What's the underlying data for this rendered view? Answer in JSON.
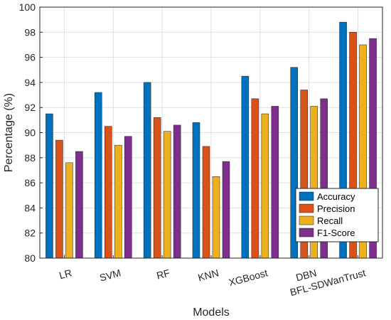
{
  "chart_data": {
    "type": "bar",
    "title": "",
    "xlabel": "Models",
    "ylabel": "Percentage (%)",
    "ylim": [
      80,
      100
    ],
    "yticks": [
      80,
      82,
      84,
      86,
      88,
      90,
      92,
      94,
      96,
      98,
      100
    ],
    "grid": true,
    "legend_position": "bottom-right",
    "categories": [
      "LR",
      "SVM",
      "RF",
      "KNN",
      "XGBoost",
      "DBN",
      "BFL-SDWanTrust"
    ],
    "series": [
      {
        "name": "Accuracy",
        "color": "#0072BD",
        "values": [
          91.5,
          93.2,
          94.0,
          90.8,
          94.5,
          95.2,
          98.8
        ]
      },
      {
        "name": "Precision",
        "color": "#D95319",
        "values": [
          89.4,
          90.5,
          91.2,
          88.9,
          92.7,
          93.4,
          98.0
        ]
      },
      {
        "name": "Recall",
        "color": "#EDB120",
        "values": [
          87.6,
          89.0,
          90.1,
          86.5,
          91.5,
          92.1,
          97.0
        ]
      },
      {
        "name": "F1-Score",
        "color": "#7E2F8E",
        "values": [
          88.5,
          89.7,
          90.6,
          87.7,
          92.1,
          92.7,
          97.5
        ]
      }
    ]
  }
}
